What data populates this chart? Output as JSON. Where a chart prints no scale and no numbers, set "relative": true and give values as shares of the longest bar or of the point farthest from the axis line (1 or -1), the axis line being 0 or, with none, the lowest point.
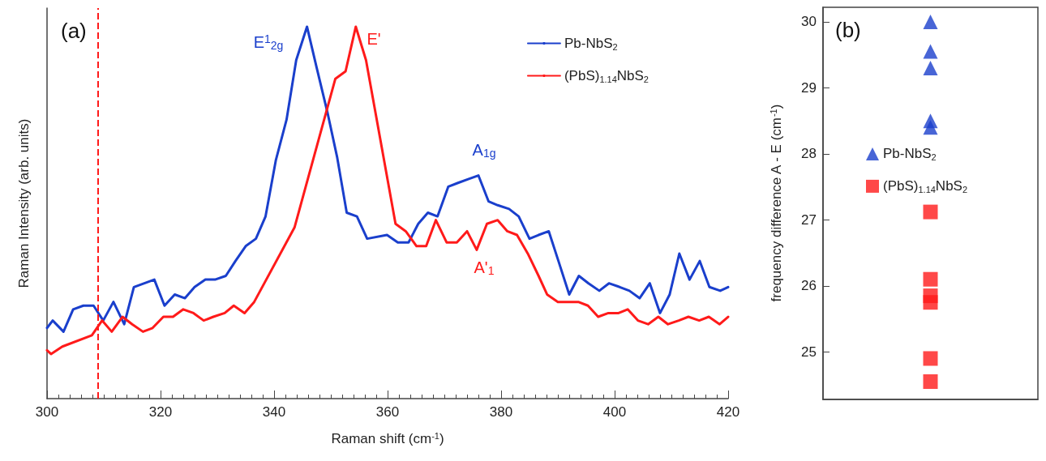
{
  "chart_data": [
    {
      "type": "line",
      "title": "(a)",
      "xlabel": "Raman shift (cm$^{-1}$)",
      "ylabel": "Raman Intensity (arb. units)",
      "relative": true,
      "xlim": [
        300,
        420
      ],
      "xticks": [
        300,
        320,
        340,
        360,
        380,
        400,
        420
      ],
      "grid": false,
      "legend": "top right",
      "line_style": "solid",
      "marker": "none",
      "series": [
        {
          "name": "Pb-NbS$_{2}$",
          "color": "#1a3fcc",
          "x": [
            300.0,
            301.0,
            302.9,
            304.6,
            306.4,
            308.2,
            309.9,
            311.7,
            313.6,
            315.3,
            318.9,
            320.7,
            322.5,
            324.3,
            326.0,
            327.9,
            329.6,
            331.5,
            333.2,
            335.0,
            336.8,
            338.5,
            340.3,
            342.2,
            343.9,
            345.8,
            347.5,
            349.4,
            351.1,
            352.8,
            354.6,
            356.4,
            359.9,
            361.8,
            363.7,
            365.4,
            367.1,
            368.8,
            370.7,
            372.4,
            374.2,
            376.0,
            377.8,
            379.4,
            381.4,
            383.1,
            385.0,
            386.6,
            388.4,
            390.1,
            392.0,
            393.7,
            395.4,
            397.3,
            399.0,
            400.9,
            402.6,
            404.4,
            406.2,
            408.0,
            409.7,
            411.4,
            413.2,
            415.0,
            416.7,
            418.6,
            420.0
          ],
          "values": [
            0.19,
            0.21,
            0.18,
            0.24,
            0.25,
            0.25,
            0.21,
            0.26,
            0.2,
            0.3,
            0.32,
            0.25,
            0.28,
            0.27,
            0.3,
            0.32,
            0.32,
            0.33,
            0.37,
            0.41,
            0.43,
            0.49,
            0.64,
            0.75,
            0.91,
            1,
            0.89,
            0.77,
            0.65,
            0.5,
            0.49,
            0.43,
            0.44,
            0.42,
            0.42,
            0.47,
            0.5,
            0.49,
            0.57,
            0.58,
            0.59,
            0.6,
            0.53,
            0.52,
            0.51,
            0.49,
            0.43,
            0.44,
            0.45,
            0.37,
            0.28,
            0.33,
            0.31,
            0.29,
            0.31,
            0.3,
            0.29,
            0.27,
            0.31,
            0.23,
            0.28,
            0.39,
            0.32,
            0.37,
            0.3,
            0.29,
            0.3
          ]
        },
        {
          "name": "(PbS)$_{1.14}$NbS$_{2}$",
          "color": "#ff1a1a",
          "x": [
            300.0,
            300.7,
            302.7,
            307.9,
            309.7,
            311.4,
            313.3,
            315.0,
            316.9,
            318.6,
            320.5,
            322.2,
            324.0,
            325.8,
            327.6,
            329.3,
            331.3,
            332.9,
            334.8,
            336.5,
            343.6,
            350.8,
            352.6,
            354.4,
            356.2,
            361.4,
            363.2,
            365.1,
            366.8,
            368.5,
            370.4,
            372.2,
            374.0,
            375.7,
            377.5,
            379.4,
            381.1,
            382.8,
            384.7,
            386.6,
            388.1,
            390.0,
            391.7,
            393.6,
            395.3,
            397.1,
            398.9,
            400.7,
            402.3,
            404.1,
            405.9,
            407.7,
            409.4,
            411.3,
            413.0,
            414.9,
            416.6,
            418.5,
            420.0
          ],
          "values": [
            0.13,
            0.12,
            0.14,
            0.17,
            0.21,
            0.18,
            0.22,
            0.2,
            0.18,
            0.19,
            0.22,
            0.22,
            0.24,
            0.23,
            0.21,
            0.22,
            0.23,
            0.25,
            0.23,
            0.26,
            0.46,
            0.86,
            0.88,
            1,
            0.91,
            0.47,
            0.45,
            0.41,
            0.41,
            0.48,
            0.42,
            0.42,
            0.45,
            0.4,
            0.47,
            0.48,
            0.45,
            0.44,
            0.39,
            0.33,
            0.28,
            0.26,
            0.26,
            0.26,
            0.25,
            0.22,
            0.23,
            0.23,
            0.24,
            0.21,
            0.2,
            0.22,
            0.2,
            0.21,
            0.22,
            0.21,
            0.22,
            0.2,
            0.22
          ]
        }
      ],
      "ref_lines": [
        {
          "axis": "x",
          "value": 309,
          "color": "#ff1a1a",
          "line_style": "dashed"
        }
      ],
      "annotations": [
        "E$^{1}$$_{2g}$",
        "E'",
        "A$_{1g}$",
        "A'$_{1}$"
      ]
    },
    {
      "type": "scatter",
      "title": "(b)",
      "ylabel": "frequency difference A - E (cm$^{-1}$)",
      "categories": [
        null
      ],
      "ylim": [
        24.28,
        30.22
      ],
      "yticks": [
        25,
        26,
        27,
        28,
        29,
        30
      ],
      "tick_labels": "y",
      "grid": false,
      "legend": "left",
      "series": [
        {
          "name": "Pb-NbS$_{2}$",
          "color": "#1a3fcc",
          "marker": "triangle",
          "x": [
            null,
            null,
            null,
            null,
            null
          ],
          "values": [
            30.0,
            29.55,
            29.3,
            28.5,
            28.4
          ]
        },
        {
          "name": "(PbS)$_{1.14}$NbS$_{2}$",
          "color": "#ff1a1a",
          "marker": "square",
          "x": [
            null,
            null,
            null,
            null,
            null,
            null
          ],
          "values": [
            27.12,
            26.1,
            25.85,
            25.75,
            24.9,
            24.55
          ]
        }
      ]
    }
  ]
}
